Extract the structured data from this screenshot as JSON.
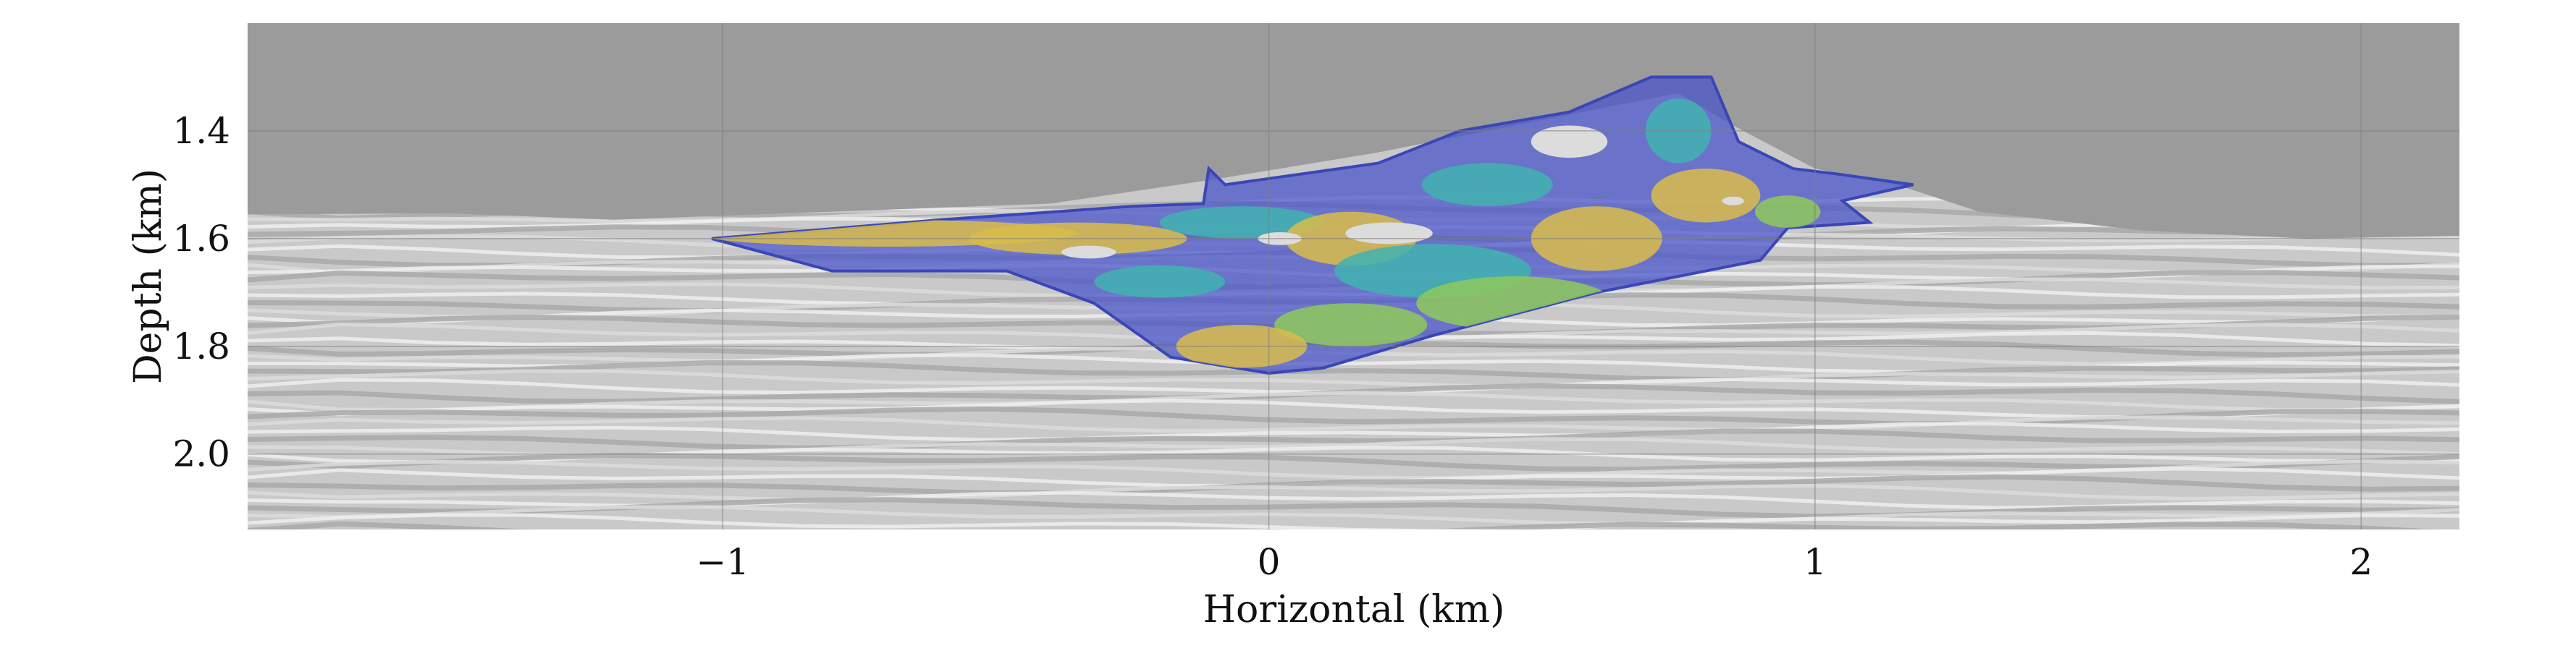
{
  "chart_data": {
    "type": "heatmap",
    "title": "",
    "xlabel": "Horizontal (km)",
    "ylabel": "Depth (km)",
    "xlim": [
      -1.87,
      2.18
    ],
    "ylim": [
      2.14,
      1.2
    ],
    "x_ticks": [
      {
        "value": -1,
        "label": "−1"
      },
      {
        "value": 0,
        "label": "0"
      },
      {
        "value": 1,
        "label": "1"
      },
      {
        "value": 2,
        "label": "2"
      }
    ],
    "y_ticks": [
      {
        "value": 1.4,
        "label": "1.4"
      },
      {
        "value": 1.6,
        "label": "1.6"
      },
      {
        "value": 1.8,
        "label": "1.8"
      },
      {
        "value": 2.0,
        "label": "2.0"
      }
    ],
    "grid": true,
    "background": "grayscale seismic reflectivity section; uniform gray above the seafloor",
    "overlay": "semi-transparent multicolor (blue, teal, green, yellow) anomaly region over a salt-body shape",
    "overlay_outline": [
      [
        -1.02,
        1.6
      ],
      [
        -0.6,
        1.565
      ],
      [
        -0.25,
        1.54
      ],
      [
        -0.12,
        1.535
      ],
      [
        -0.11,
        1.47
      ],
      [
        -0.08,
        1.5
      ],
      [
        0.2,
        1.46
      ],
      [
        0.35,
        1.4
      ],
      [
        0.55,
        1.365
      ],
      [
        0.7,
        1.3
      ],
      [
        0.81,
        1.3
      ],
      [
        0.86,
        1.42
      ],
      [
        0.96,
        1.47
      ],
      [
        1.04,
        1.48
      ],
      [
        1.18,
        1.5
      ],
      [
        1.05,
        1.53
      ],
      [
        1.1,
        1.57
      ],
      [
        0.95,
        1.58
      ],
      [
        0.9,
        1.64
      ],
      [
        0.6,
        1.7
      ],
      [
        0.3,
        1.78
      ],
      [
        0.1,
        1.84
      ],
      [
        0.0,
        1.85
      ],
      [
        -0.18,
        1.82
      ],
      [
        -0.32,
        1.72
      ],
      [
        -0.48,
        1.66
      ],
      [
        -0.8,
        1.66
      ],
      [
        -1.02,
        1.6
      ]
    ],
    "colors": {
      "sky": "#9b9b9b",
      "grid": "#7f7f7f",
      "overlay_blue": "#4a55c8",
      "overlay_teal": "#3fb3b0",
      "overlay_green": "#8ec95a",
      "overlay_yellow": "#d9bc4a"
    }
  }
}
